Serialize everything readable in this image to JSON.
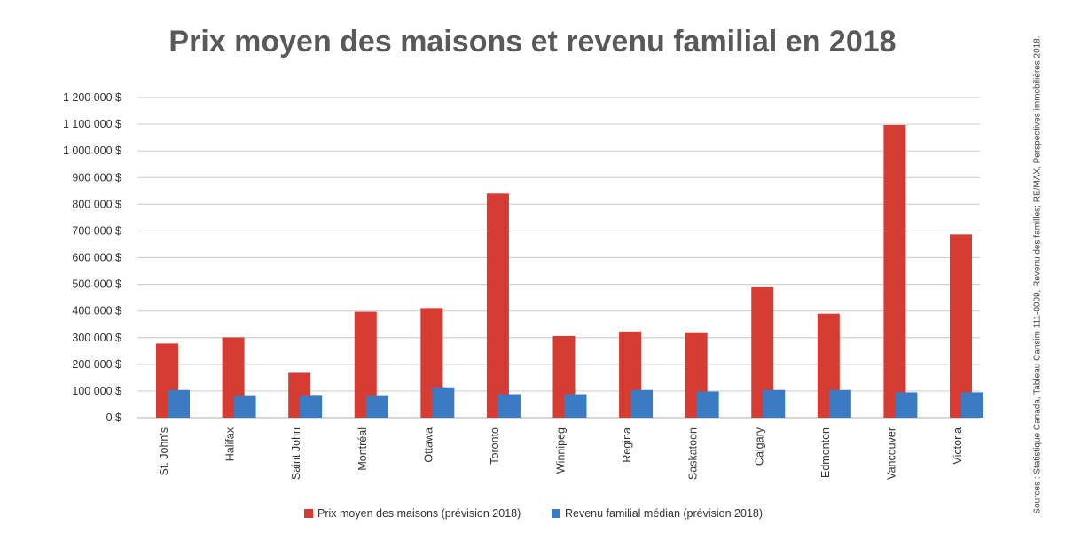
{
  "chart_data": {
    "type": "bar",
    "title": "Prix moyen des maisons et revenu familial en 2018",
    "xlabel": "",
    "ylabel": "",
    "ylim": [
      0,
      1200000
    ],
    "yticks": [
      0,
      100000,
      200000,
      300000,
      400000,
      500000,
      600000,
      700000,
      800000,
      900000,
      1000000,
      1100000,
      1200000
    ],
    "ytick_labels": [
      "0 $",
      "100 000 $",
      "200 000 $",
      "300 000 $",
      "400 000 $",
      "500 000 $",
      "600 000 $",
      "700 000 $",
      "800 000 $",
      "900 000 $",
      "1 000 000 $",
      "1 100 000 $",
      "1 200 000 $"
    ],
    "grid": true,
    "legend_position": "bottom",
    "categories": [
      "St. John's",
      "Halifax",
      "Saint John",
      "Montréal",
      "Ottawa",
      "Toronto",
      "Winnipeg",
      "Regina",
      "Saskatoon",
      "Calgary",
      "Edmonton",
      "Vancouver",
      "Victoria"
    ],
    "series": [
      {
        "name": "Prix moyen des maisons (prévision 2018)",
        "color": "#d63c31",
        "values": [
          278000,
          301000,
          168000,
          397000,
          411000,
          840000,
          306000,
          323000,
          320000,
          489000,
          390000,
          1097000,
          687000
        ]
      },
      {
        "name": "Revenu familial médian (prévision 2018)",
        "color": "#3a7bc4",
        "values": [
          104000,
          81000,
          82000,
          81000,
          114000,
          88000,
          88000,
          104000,
          98000,
          104000,
          104000,
          95000,
          95000
        ]
      }
    ]
  },
  "source": "Sources : Statistique Canada, Tableau Cansim 111-0009, Revenu des familles; RE/MAX, Perspectives immobilières 2018."
}
